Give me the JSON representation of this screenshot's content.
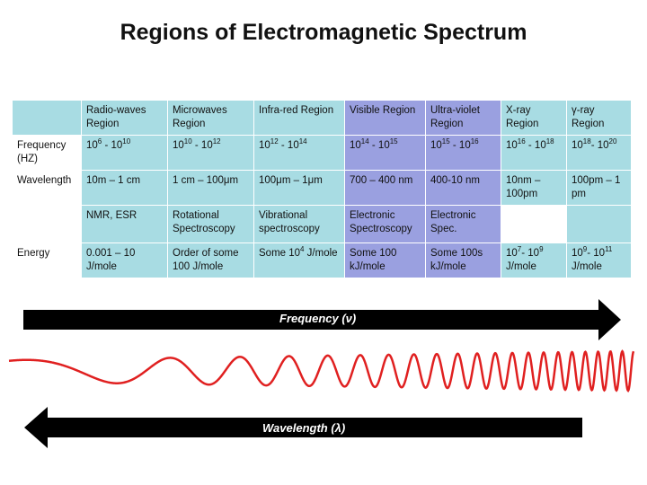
{
  "title": "Regions of Electromagnetic Spectrum",
  "headers": [
    "",
    "Radio-waves Region",
    "Microwaves Region",
    "Infra-red Region",
    "Visible Region",
    "Ultra-violet Region",
    "X-ray Region",
    "γ-ray Region"
  ],
  "rows": {
    "frequency": {
      "label": "Frequency (HZ)",
      "cells": [
        {
          "base": "10",
          "exp": "6",
          "sep": " - ",
          "base2": "10",
          "exp2": "10"
        },
        {
          "base": "10",
          "exp": "10",
          "sep": " - ",
          "base2": "10",
          "exp2": "12"
        },
        {
          "base": "10",
          "exp": "12",
          "sep": " - ",
          "base2": "10",
          "exp2": "14"
        },
        {
          "base": "10",
          "exp": "14",
          "sep": " - ",
          "base2": "10",
          "exp2": "15"
        },
        {
          "base": "10",
          "exp": "15",
          "sep": " - ",
          "base2": "10",
          "exp2": "16"
        },
        {
          "base": "10",
          "exp": "16",
          "sep": " - ",
          "base2": "10",
          "exp2": "18"
        },
        {
          "base": "10",
          "exp": "18",
          "sep": "- ",
          "base2": "10",
          "exp2": "20"
        }
      ]
    },
    "wavelength": {
      "label": "Wavelength",
      "cells": [
        "10m – 1 cm",
        "1 cm – 100μm",
        "100μm – 1μm",
        "700 – 400 nm",
        "400-10 nm",
        "10nm – 100pm",
        "100pm – 1 pm"
      ]
    },
    "technique": {
      "label": "",
      "cells": [
        "NMR, ESR",
        "Rotational Spectroscopy",
        "Vibrational spectroscopy",
        "Electronic Spectroscopy",
        "Electronic Spec.",
        "",
        ""
      ]
    },
    "energy": {
      "label": "Energy",
      "cells": [
        {
          "text": "0.001 – 10 J/mole"
        },
        {
          "text": "Order of some 100 J/mole"
        },
        {
          "pre": "Some 10",
          "exp": "4",
          "post": " J/mole"
        },
        {
          "text": "Some 100 kJ/mole"
        },
        {
          "text": "Some 100s kJ/mole"
        },
        {
          "pre": "10",
          "exp": "7",
          "mid": "- 10",
          "exp2": "9",
          "post": " J/mole"
        },
        {
          "pre": "10",
          "exp": "9",
          "mid": "- 10",
          "exp2": "11",
          "post": " J/mole"
        }
      ]
    }
  },
  "arrows": {
    "frequency_label": "Frequency (ν)",
    "wavelength_label": "Wavelength (λ)"
  },
  "colors": {
    "header": "#a8dce3",
    "middle": "#9aa0e0",
    "wave": "#e02020",
    "arrow": "#000000"
  }
}
